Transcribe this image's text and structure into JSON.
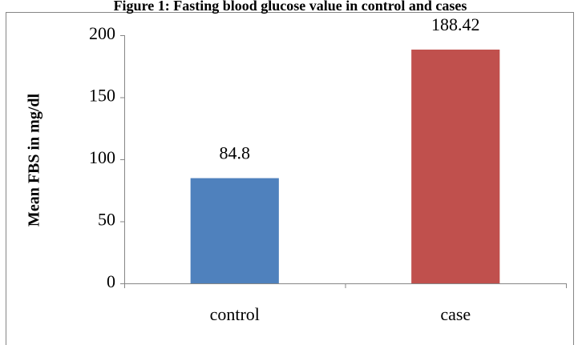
{
  "chart_data": {
    "type": "bar",
    "title": "Figure 1: Fasting blood glucose value in control and cases",
    "y_label": "Mean FBS in mg/dl",
    "categories": [
      "control",
      "case"
    ],
    "values": [
      84.8,
      188.42
    ],
    "colors": [
      "#4f81bd",
      "#c0504d"
    ],
    "ylim": [
      0,
      200
    ],
    "yticks": [
      0,
      50,
      100,
      150,
      200
    ],
    "grid": false
  }
}
